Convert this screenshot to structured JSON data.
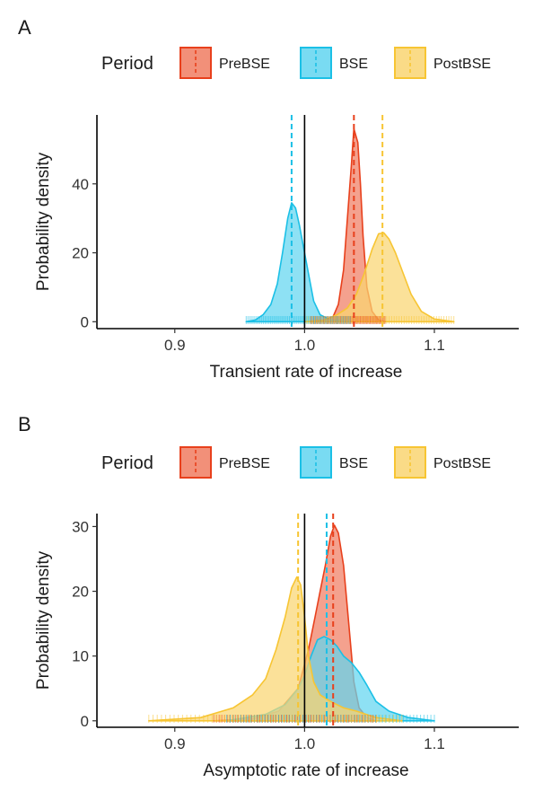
{
  "chart_data": [
    {
      "type": "area",
      "panel_label": "A",
      "xlabel": "Transient rate of increase",
      "ylabel": "Probability density",
      "xlim": [
        0.84,
        1.165
      ],
      "ylim": [
        -2,
        60
      ],
      "xticks": [
        0.9,
        1.0,
        1.1
      ],
      "xtick_labels": [
        "0.9",
        "1.0",
        "1.1"
      ],
      "yticks": [
        0,
        20,
        40
      ],
      "ytick_labels": [
        "0",
        "20",
        "40"
      ],
      "reference_line_x": 1.0,
      "legend": {
        "title": "Period",
        "position": "top"
      },
      "series": [
        {
          "name": "PreBSE",
          "color": "#e8401c",
          "fill": "#f07d62",
          "mean": 1.038,
          "x": [
            1.005,
            1.015,
            1.022,
            1.026,
            1.03,
            1.033,
            1.036,
            1.038,
            1.041,
            1.043,
            1.045,
            1.048,
            1.052,
            1.057,
            1.062
          ],
          "y": [
            0,
            0.3,
            1.5,
            5,
            15,
            30,
            45,
            56,
            52,
            40,
            25,
            10,
            3,
            0.5,
            0
          ]
        },
        {
          "name": "BSE",
          "color": "#1bc0e6",
          "fill": "#62d5f0",
          "mean": 0.99,
          "x": [
            0.955,
            0.962,
            0.968,
            0.974,
            0.979,
            0.983,
            0.987,
            0.99,
            0.993,
            0.996,
            0.999,
            1.003,
            1.007,
            1.012,
            1.02,
            1.035
          ],
          "y": [
            0,
            0.5,
            2,
            5,
            11,
            20,
            30,
            34.5,
            33,
            28,
            22,
            14,
            6,
            2,
            0.5,
            0
          ]
        },
        {
          "name": "PostBSE",
          "color": "#f7c533",
          "fill": "#f9d572",
          "mean": 1.06,
          "x": [
            1.0,
            1.015,
            1.025,
            1.033,
            1.04,
            1.046,
            1.052,
            1.057,
            1.061,
            1.065,
            1.07,
            1.076,
            1.082,
            1.09,
            1.1,
            1.115
          ],
          "y": [
            0,
            0.5,
            2,
            4,
            8,
            14,
            21,
            25.5,
            25.8,
            24,
            20,
            14,
            8,
            3,
            0.8,
            0
          ]
        }
      ]
    },
    {
      "type": "area",
      "panel_label": "B",
      "xlabel": "Asymptotic rate of increase",
      "ylabel": "Probability density",
      "xlim": [
        0.84,
        1.165
      ],
      "ylim": [
        -1,
        32
      ],
      "xticks": [
        0.9,
        1.0,
        1.1
      ],
      "xtick_labels": [
        "0.9",
        "1.0",
        "1.1"
      ],
      "yticks": [
        0,
        10,
        20,
        30
      ],
      "ytick_labels": [
        "0",
        "10",
        "20",
        "30"
      ],
      "reference_line_x": 1.0,
      "legend": {
        "title": "Period",
        "position": "top"
      },
      "series": [
        {
          "name": "PreBSE",
          "color": "#e8401c",
          "fill": "#f07d62",
          "mean": 1.022,
          "x": [
            0.93,
            0.96,
            0.98,
            0.995,
            1.003,
            1.008,
            1.012,
            1.016,
            1.02,
            1.023,
            1.026,
            1.03,
            1.034,
            1.038,
            1.042,
            1.048,
            1.055
          ],
          "y": [
            0,
            0.3,
            1.5,
            5,
            11,
            16,
            20,
            24,
            28.5,
            30.2,
            29,
            24,
            15,
            6,
            2,
            0.5,
            0
          ]
        },
        {
          "name": "BSE",
          "color": "#1bc0e6",
          "fill": "#62d5f0",
          "mean": 1.017,
          "x": [
            0.94,
            0.97,
            0.985,
            0.995,
            1.0,
            1.005,
            1.01,
            1.015,
            1.02,
            1.025,
            1.03,
            1.036,
            1.042,
            1.048,
            1.055,
            1.065,
            1.08,
            1.1
          ],
          "y": [
            0,
            1,
            2.5,
            5,
            7,
            10,
            12.5,
            13,
            12.5,
            11.5,
            10,
            9,
            7.5,
            5.5,
            3,
            1.5,
            0.5,
            0
          ]
        },
        {
          "name": "PostBSE",
          "color": "#f7c533",
          "fill": "#f9d572",
          "mean": 0.995,
          "x": [
            0.88,
            0.92,
            0.945,
            0.96,
            0.97,
            0.978,
            0.985,
            0.99,
            0.994,
            0.997,
            1.0,
            1.003,
            1.007,
            1.012,
            1.02,
            1.03,
            1.04,
            1.055,
            1.075
          ],
          "y": [
            0,
            0.5,
            2,
            4,
            6.5,
            11,
            16,
            20.5,
            22.2,
            21,
            16,
            10,
            6,
            4,
            3,
            2,
            1.5,
            0.5,
            0
          ]
        }
      ]
    }
  ]
}
